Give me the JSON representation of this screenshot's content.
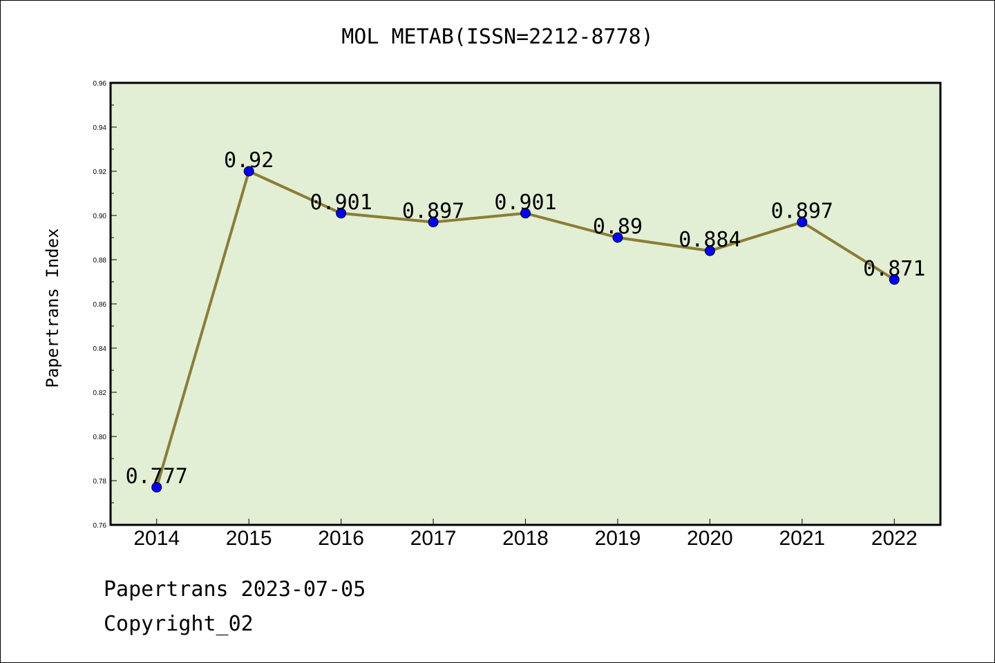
{
  "chart_data": {
    "type": "line",
    "title": "MOL METAB(ISSN=2212-8778)",
    "ylabel": "Papertrans Index",
    "xlabel": "",
    "categories": [
      "2014",
      "2015",
      "2016",
      "2017",
      "2018",
      "2019",
      "2020",
      "2021",
      "2022"
    ],
    "series": [
      {
        "values": [
          0.777,
          0.92,
          0.901,
          0.897,
          0.901,
          0.89,
          0.884,
          0.897,
          0.871
        ]
      }
    ],
    "data_labels": [
      "0.777",
      "0.92",
      "0.901",
      "0.897",
      "0.901",
      "0.89",
      "0.884",
      "0.897",
      "0.871"
    ],
    "ylim": [
      0.76,
      0.96
    ],
    "yticks": [
      "0.76",
      "0.78",
      "0.80",
      "0.82",
      "0.84",
      "0.86",
      "0.88",
      "0.90",
      "0.92",
      "0.94",
      "0.96"
    ],
    "grid": false,
    "colors": {
      "plot_background": "#e2efd5",
      "line": "#8b7d36",
      "marker": "#0000ff"
    }
  },
  "footer": {
    "line1": "Papertrans 2023-07-05",
    "line2": "Copyright_02"
  }
}
